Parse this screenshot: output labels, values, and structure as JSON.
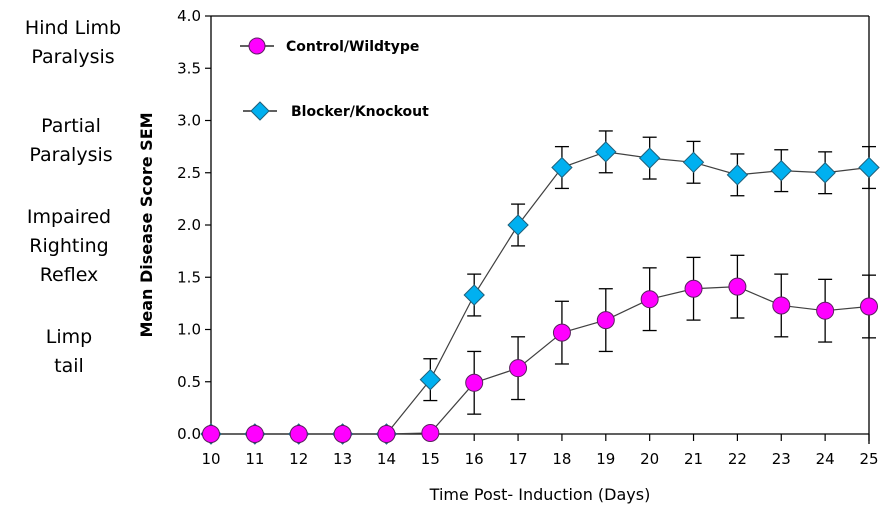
{
  "stage_labels": [
    {
      "text": "Hind Limb\nParalysis",
      "score": 4.0
    },
    {
      "text": "Partial\nParalysis",
      "score": 3.0
    },
    {
      "text": "Impaired\nRighting\nReflex",
      "score": 2.0
    },
    {
      "text": "Limp\ntail",
      "score": 1.0
    }
  ],
  "chart_data": {
    "type": "line",
    "title": "",
    "xlabel": "Time Post- Induction (Days)",
    "ylabel": "Mean Disease Score SEM",
    "x": [
      10,
      11,
      12,
      13,
      14,
      15,
      16,
      17,
      18,
      19,
      20,
      21,
      22,
      23,
      24,
      25
    ],
    "xlim": [
      10,
      25
    ],
    "ylim": [
      0,
      4.0
    ],
    "yticks": [
      "0.0",
      "0.5",
      "1.0",
      "1.5",
      "2.0",
      "2.5",
      "3.0",
      "3.5",
      "4.0"
    ],
    "xticks": [
      "10",
      "11",
      "12",
      "13",
      "14",
      "15",
      "16",
      "17",
      "18",
      "19",
      "20",
      "21",
      "22",
      "23",
      "24",
      "25"
    ],
    "grid": false,
    "legend_position": "top-left",
    "series": [
      {
        "name": "Control/Wildtype",
        "marker": "circle",
        "color": "#FF00FF",
        "values": [
          0,
          0,
          0,
          0,
          0,
          0.01,
          0.49,
          0.63,
          0.97,
          1.09,
          1.29,
          1.39,
          1.41,
          1.23,
          1.18,
          1.22
        ],
        "error": [
          0,
          0,
          0,
          0,
          0,
          0,
          0.3,
          0.3,
          0.3,
          0.3,
          0.3,
          0.3,
          0.3,
          0.3,
          0.3,
          0.3
        ]
      },
      {
        "name": "Blocker/Knockout",
        "marker": "diamond",
        "color": "#00B0F0",
        "values": [
          0,
          0,
          0,
          0,
          0,
          0.52,
          1.33,
          2.0,
          2.55,
          2.7,
          2.64,
          2.6,
          2.48,
          2.52,
          2.5,
          2.55
        ],
        "error": [
          0,
          0,
          0,
          0,
          0,
          0.2,
          0.2,
          0.2,
          0.2,
          0.2,
          0.2,
          0.2,
          0.2,
          0.2,
          0.2,
          0.2
        ]
      }
    ]
  }
}
